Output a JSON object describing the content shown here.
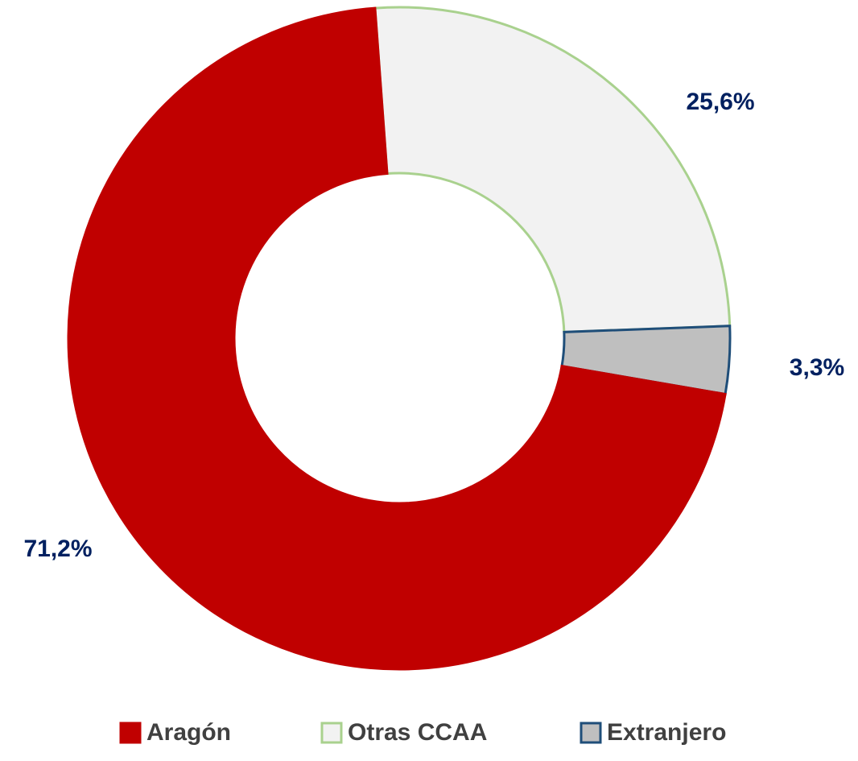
{
  "chart_data": {
    "type": "donut",
    "categories": [
      "Aragón",
      "Otras CCAA",
      "Extranjero"
    ],
    "values": [
      71.2,
      25.6,
      3.3
    ],
    "value_labels": [
      "71,2%",
      "25,6%",
      "3,3%"
    ],
    "colors": [
      "#c00000",
      "#f2f2f2",
      "#bfbfbf"
    ],
    "edge_colors": [
      "#c00000",
      "#a9d18e",
      "#1f4e79"
    ],
    "legend": "bottom"
  }
}
